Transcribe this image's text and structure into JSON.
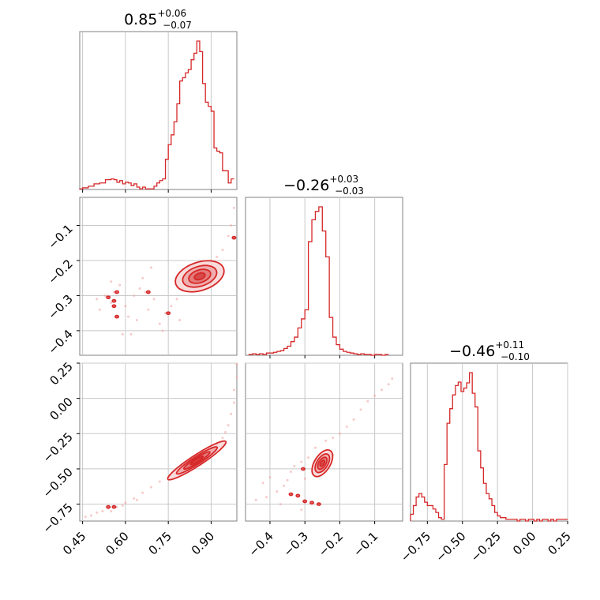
{
  "figure": {
    "accent_color": "#d62728",
    "grid": true
  },
  "titles": [
    {
      "panel": "hist-0",
      "value": "0.85",
      "plus": "+0.06",
      "minus": "−0.07"
    },
    {
      "panel": "hist-1",
      "value": "−0.26",
      "plus": "+0.03",
      "minus": "−0.03"
    },
    {
      "panel": "hist-2",
      "value": "−0.46",
      "plus": "+0.11",
      "minus": "−0.10"
    }
  ],
  "chart_data": {
    "type": "corner",
    "grid": true,
    "color": "#d62728",
    "params": [
      {
        "xlim": [
          0.44,
          0.99
        ],
        "ticks": [
          0.45,
          0.6,
          0.75,
          0.9
        ],
        "tick_labels": [
          "0.45",
          "0.60",
          "0.75",
          "0.90"
        ]
      },
      {
        "xlim": [
          -0.47,
          -0.02
        ],
        "ticks": [
          -0.4,
          -0.3,
          -0.2,
          -0.1
        ],
        "tick_labels": [
          "−0.4",
          "−0.3",
          "−0.2",
          "−0.1"
        ]
      },
      {
        "xlim": [
          -0.87,
          0.25
        ],
        "ticks": [
          -0.75,
          -0.5,
          -0.25,
          0.0,
          0.25
        ],
        "tick_labels": [
          "−0.75",
          "−0.50",
          "−0.25",
          "0.00",
          "0.25"
        ]
      }
    ],
    "marginals": [
      {
        "param": 0,
        "bins": [
          [
            0.44,
            0.004
          ],
          [
            0.45,
            0.011
          ],
          [
            0.46,
            0.011
          ],
          [
            0.47,
            0.022
          ],
          [
            0.48,
            0.022
          ],
          [
            0.49,
            0.038
          ],
          [
            0.5,
            0.038
          ],
          [
            0.51,
            0.044
          ],
          [
            0.52,
            0.044
          ],
          [
            0.53,
            0.066
          ],
          [
            0.54,
            0.066
          ],
          [
            0.55,
            0.071
          ],
          [
            0.56,
            0.066
          ],
          [
            0.57,
            0.049
          ],
          [
            0.58,
            0.06
          ],
          [
            0.59,
            0.038
          ],
          [
            0.6,
            0.049
          ],
          [
            0.61,
            0.044
          ],
          [
            0.62,
            0.027
          ],
          [
            0.63,
            0.038
          ],
          [
            0.64,
            0.016
          ],
          [
            0.65,
            0.004
          ],
          [
            0.66,
            0.016
          ],
          [
            0.67,
            0.004
          ],
          [
            0.68,
            0.004
          ],
          [
            0.69,
            0.004
          ],
          [
            0.7,
            0.022
          ],
          [
            0.71,
            0.044
          ],
          [
            0.72,
            0.06
          ],
          [
            0.73,
            0.071
          ],
          [
            0.74,
            0.203
          ],
          [
            0.75,
            0.302
          ],
          [
            0.76,
            0.368
          ],
          [
            0.77,
            0.456
          ],
          [
            0.78,
            0.577
          ],
          [
            0.79,
            0.731
          ],
          [
            0.8,
            0.753
          ],
          [
            0.81,
            0.786
          ],
          [
            0.82,
            0.808
          ],
          [
            0.83,
            0.874
          ],
          [
            0.84,
            0.918
          ],
          [
            0.85,
            1.0
          ],
          [
            0.86,
            0.929
          ],
          [
            0.87,
            0.714
          ],
          [
            0.88,
            0.588
          ],
          [
            0.89,
            0.56
          ],
          [
            0.9,
            0.527
          ],
          [
            0.91,
            0.28
          ],
          [
            0.92,
            0.258
          ],
          [
            0.93,
            0.247
          ],
          [
            0.94,
            0.126
          ],
          [
            0.95,
            0.126
          ],
          [
            0.96,
            0.044
          ],
          [
            0.97,
            0.071
          ]
        ]
      },
      {
        "param": 1,
        "bins": [
          [
            -0.46,
            0.005
          ],
          [
            -0.45,
            0.01
          ],
          [
            -0.44,
            0.005
          ],
          [
            -0.43,
            0.01
          ],
          [
            -0.42,
            0.005
          ],
          [
            -0.41,
            0.015
          ],
          [
            -0.4,
            0.015
          ],
          [
            -0.39,
            0.02
          ],
          [
            -0.38,
            0.026
          ],
          [
            -0.37,
            0.031
          ],
          [
            -0.36,
            0.046
          ],
          [
            -0.35,
            0.061
          ],
          [
            -0.34,
            0.092
          ],
          [
            -0.33,
            0.122
          ],
          [
            -0.32,
            0.184
          ],
          [
            -0.31,
            0.245
          ],
          [
            -0.3,
            0.306
          ],
          [
            -0.29,
            0.765
          ],
          [
            -0.28,
            0.913
          ],
          [
            -0.27,
            0.969
          ],
          [
            -0.26,
            1.0
          ],
          [
            -0.25,
            0.837
          ],
          [
            -0.24,
            0.663
          ],
          [
            -0.23,
            0.255
          ],
          [
            -0.22,
            0.122
          ],
          [
            -0.21,
            0.071
          ],
          [
            -0.2,
            0.041
          ],
          [
            -0.19,
            0.026
          ],
          [
            -0.18,
            0.02
          ],
          [
            -0.17,
            0.015
          ],
          [
            -0.16,
            0.01
          ],
          [
            -0.15,
            0.005
          ],
          [
            -0.14,
            0.01
          ],
          [
            -0.13,
            0.005
          ],
          [
            -0.12,
            0.005
          ],
          [
            -0.11,
            0.0
          ],
          [
            -0.1,
            0.005
          ],
          [
            -0.09,
            0.005
          ],
          [
            -0.08,
            0.0
          ],
          [
            -0.07,
            0.005
          ]
        ]
      },
      {
        "param": 2,
        "bins": [
          [
            -0.87,
            0.046
          ],
          [
            -0.85,
            0.104
          ],
          [
            -0.83,
            0.162
          ],
          [
            -0.81,
            0.185
          ],
          [
            -0.79,
            0.162
          ],
          [
            -0.77,
            0.127
          ],
          [
            -0.75,
            0.104
          ],
          [
            -0.73,
            0.104
          ],
          [
            -0.71,
            0.081
          ],
          [
            -0.69,
            0.058
          ],
          [
            -0.67,
            0.023
          ],
          [
            -0.65,
            0.012
          ],
          [
            -0.63,
            0.381
          ],
          [
            -0.61,
            0.659
          ],
          [
            -0.59,
            0.757
          ],
          [
            -0.57,
            0.85
          ],
          [
            -0.55,
            0.913
          ],
          [
            -0.53,
            0.936
          ],
          [
            -0.51,
            0.873
          ],
          [
            -0.49,
            0.896
          ],
          [
            -0.47,
            0.931
          ],
          [
            -0.45,
            1.0
          ],
          [
            -0.43,
            0.861
          ],
          [
            -0.41,
            0.769
          ],
          [
            -0.39,
            0.473
          ],
          [
            -0.37,
            0.358
          ],
          [
            -0.35,
            0.254
          ],
          [
            -0.33,
            0.185
          ],
          [
            -0.31,
            0.15
          ],
          [
            -0.29,
            0.104
          ],
          [
            -0.27,
            0.058
          ],
          [
            -0.25,
            0.035
          ],
          [
            -0.23,
            0.023
          ],
          [
            -0.21,
            0.023
          ],
          [
            -0.19,
            0.012
          ],
          [
            -0.17,
            0.012
          ],
          [
            -0.15,
            0.012
          ],
          [
            -0.13,
            0.012
          ],
          [
            -0.11,
            0.0
          ],
          [
            -0.09,
            0.012
          ],
          [
            -0.07,
            0.012
          ],
          [
            -0.05,
            0.0
          ],
          [
            -0.03,
            0.012
          ],
          [
            -0.01,
            0.012
          ],
          [
            0.01,
            0.0
          ],
          [
            0.03,
            0.012
          ],
          [
            0.05,
            0.0
          ],
          [
            0.07,
            0.012
          ],
          [
            0.09,
            0.012
          ],
          [
            0.11,
            0.0
          ],
          [
            0.13,
            0.012
          ],
          [
            0.15,
            0.0
          ],
          [
            0.17,
            0.012
          ],
          [
            0.19,
            0.012
          ],
          [
            0.21,
            0.012
          ],
          [
            0.23,
            0.012
          ]
        ]
      }
    ],
    "joints": [
      {
        "x_param": 0,
        "y_param": 1,
        "ylim": [
          -0.47,
          -0.02
        ],
        "ticks": [
          -0.4,
          -0.3,
          -0.2,
          -0.1
        ],
        "tick_labels": [
          "−0.4",
          "−0.3",
          "−0.2",
          "−0.1"
        ],
        "core": {
          "center": [
            0.86,
            -0.245
          ],
          "len": 0.32,
          "wid": 0.18,
          "angle": 18
        },
        "samples": [
          [
            0.5,
            -0.31
          ],
          [
            0.53,
            -0.3
          ],
          [
            0.55,
            -0.32
          ],
          [
            0.56,
            -0.29
          ],
          [
            0.58,
            -0.27
          ],
          [
            0.6,
            -0.33
          ],
          [
            0.61,
            -0.36
          ],
          [
            0.62,
            -0.41
          ],
          [
            0.63,
            -0.3
          ],
          [
            0.65,
            -0.28
          ],
          [
            0.66,
            -0.25
          ],
          [
            0.67,
            -0.29
          ],
          [
            0.68,
            -0.34
          ],
          [
            0.7,
            -0.31
          ],
          [
            0.72,
            -0.38
          ],
          [
            0.74,
            -0.35
          ],
          [
            0.76,
            -0.33
          ],
          [
            0.78,
            -0.31
          ],
          [
            0.8,
            -0.28
          ],
          [
            0.83,
            -0.26
          ],
          [
            0.86,
            -0.24
          ],
          [
            0.88,
            -0.22
          ],
          [
            0.9,
            -0.2
          ],
          [
            0.92,
            -0.19
          ],
          [
            0.94,
            -0.17
          ],
          [
            0.96,
            -0.13
          ],
          [
            0.97,
            -0.1
          ],
          [
            0.98,
            -0.05
          ],
          [
            0.55,
            -0.26
          ],
          [
            0.59,
            -0.41
          ],
          [
            0.73,
            -0.4
          ],
          [
            0.79,
            -0.37
          ],
          [
            0.51,
            -0.34
          ],
          [
            0.64,
            -0.37
          ],
          [
            0.69,
            -0.22
          ]
        ],
        "islands": [
          [
            0.54,
            -0.305
          ],
          [
            0.56,
            -0.315
          ],
          [
            0.57,
            -0.29
          ],
          [
            0.56,
            -0.33
          ],
          [
            0.57,
            -0.36
          ],
          [
            0.68,
            -0.29
          ],
          [
            0.75,
            -0.35
          ],
          [
            0.98,
            -0.135
          ]
        ]
      },
      {
        "x_param": 0,
        "y_param": 2,
        "ylim": [
          -0.87,
          0.25
        ],
        "ticks": [
          -0.75,
          -0.5,
          -0.25,
          0.0,
          0.25
        ],
        "tick_labels": [
          "−0.75",
          "−0.50",
          "−0.25",
          "0.00",
          "0.25"
        ],
        "core": {
          "center": [
            0.85,
            -0.44
          ],
          "len": 0.44,
          "wid": 0.07,
          "angle": 33
        },
        "samples": [
          [
            0.46,
            -0.84
          ],
          [
            0.48,
            -0.83
          ],
          [
            0.5,
            -0.81
          ],
          [
            0.52,
            -0.8
          ],
          [
            0.54,
            -0.78
          ],
          [
            0.57,
            -0.77
          ],
          [
            0.6,
            -0.74
          ],
          [
            0.63,
            -0.71
          ],
          [
            0.66,
            -0.67
          ],
          [
            0.69,
            -0.63
          ],
          [
            0.72,
            -0.59
          ],
          [
            0.75,
            -0.56
          ],
          [
            0.78,
            -0.52
          ],
          [
            0.81,
            -0.49
          ],
          [
            0.84,
            -0.46
          ],
          [
            0.87,
            -0.42
          ],
          [
            0.9,
            -0.37
          ],
          [
            0.92,
            -0.33
          ],
          [
            0.94,
            -0.28
          ],
          [
            0.95,
            -0.24
          ],
          [
            0.96,
            -0.19
          ],
          [
            0.97,
            -0.11
          ],
          [
            0.98,
            -0.03
          ],
          [
            0.98,
            0.06
          ],
          [
            0.99,
            0.15
          ],
          [
            0.99,
            0.24
          ],
          [
            0.55,
            -0.8
          ],
          [
            0.59,
            -0.76
          ],
          [
            0.64,
            -0.72
          ]
        ],
        "islands": [
          [
            0.54,
            -0.77
          ],
          [
            0.56,
            -0.77
          ]
        ]
      },
      {
        "x_param": 1,
        "y_param": 2,
        "ylim": [
          -0.87,
          0.25
        ],
        "core": {
          "center": [
            -0.25,
            -0.46
          ],
          "len": 0.19,
          "wid": 0.1,
          "angle": 58
        },
        "samples": [
          [
            -0.44,
            -0.72
          ],
          [
            -0.41,
            -0.7
          ],
          [
            -0.38,
            -0.66
          ],
          [
            -0.36,
            -0.62
          ],
          [
            -0.35,
            -0.58
          ],
          [
            -0.34,
            -0.52
          ],
          [
            -0.33,
            -0.48
          ],
          [
            -0.31,
            -0.45
          ],
          [
            -0.29,
            -0.42
          ],
          [
            -0.27,
            -0.35
          ],
          [
            -0.24,
            -0.3
          ],
          [
            -0.22,
            -0.28
          ],
          [
            -0.2,
            -0.25
          ],
          [
            -0.18,
            -0.2
          ],
          [
            -0.16,
            -0.15
          ],
          [
            -0.14,
            -0.08
          ],
          [
            -0.12,
            -0.02
          ],
          [
            -0.1,
            0.02
          ],
          [
            -0.08,
            0.06
          ],
          [
            -0.06,
            0.1
          ],
          [
            -0.05,
            0.14
          ],
          [
            -0.4,
            -0.56
          ],
          [
            -0.42,
            -0.6
          ],
          [
            -0.3,
            -0.57
          ],
          [
            -0.22,
            -0.4
          ],
          [
            -0.37,
            -0.75
          ],
          [
            -0.31,
            -0.79
          ]
        ],
        "islands": [
          [
            -0.34,
            -0.68
          ],
          [
            -0.32,
            -0.69
          ],
          [
            -0.3,
            -0.73
          ],
          [
            -0.28,
            -0.74
          ],
          [
            -0.26,
            -0.75
          ],
          [
            -0.305,
            -0.5
          ]
        ]
      }
    ]
  }
}
